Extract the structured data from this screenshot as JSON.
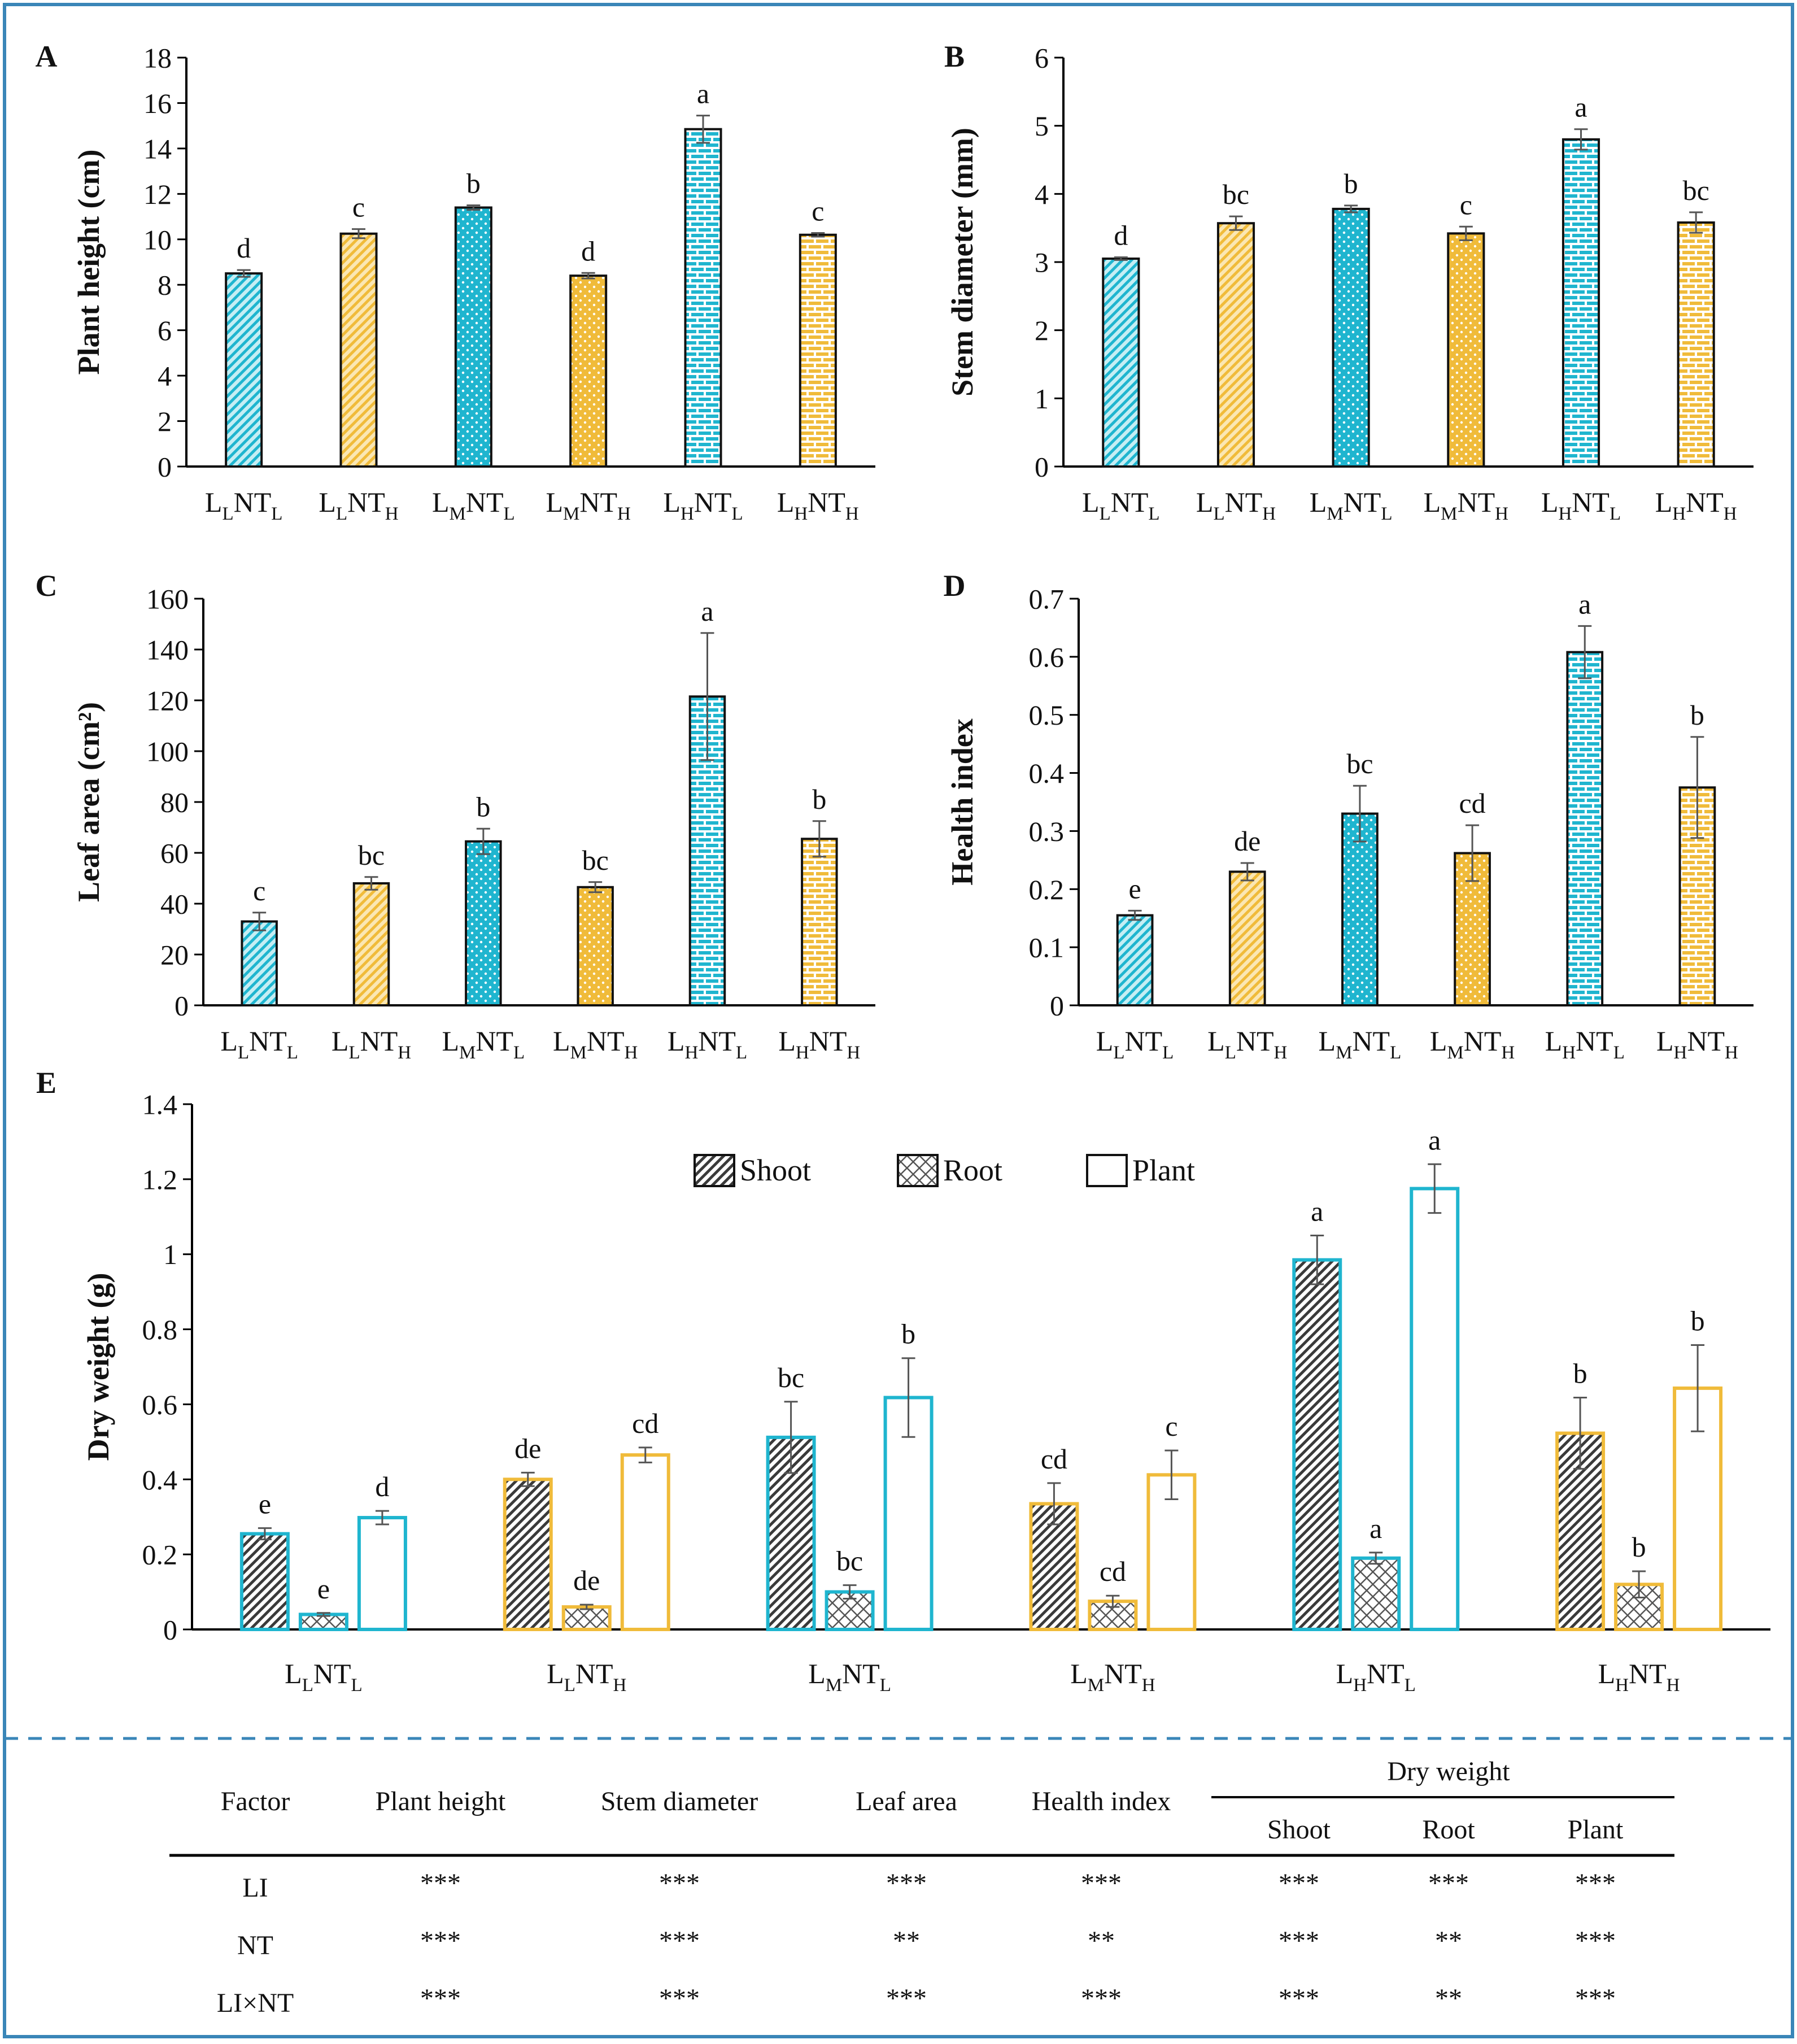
{
  "colors": {
    "teal": "#1fb5cf",
    "teal_light": "#c5eef4",
    "gold": "#f0bb3a",
    "gold_light": "#fbe7b3",
    "frame": "#3a86b8",
    "dark_fill": "#3a3a3a"
  },
  "chart_data": [
    {
      "id": "A",
      "type": "bar",
      "letter": "A",
      "ylabel": "Plant height (cm)",
      "ylim": [
        0,
        18
      ],
      "yticks": [
        "0",
        "2",
        "4",
        "6",
        "8",
        "10",
        "12",
        "14",
        "16",
        "18"
      ],
      "categories": [
        {
          "b": "L",
          "s1": "L",
          "m": "NT",
          "s2": "L"
        },
        {
          "b": "L",
          "s1": "L",
          "m": "NT",
          "s2": "H"
        },
        {
          "b": "L",
          "s1": "M",
          "m": "NT",
          "s2": "L"
        },
        {
          "b": "L",
          "s1": "M",
          "m": "NT",
          "s2": "H"
        },
        {
          "b": "L",
          "s1": "H",
          "m": "NT",
          "s2": "L"
        },
        {
          "b": "L",
          "s1": "H",
          "m": "NT",
          "s2": "H"
        }
      ],
      "values": [
        8.5,
        10.25,
        11.4,
        8.4,
        14.85,
        10.2
      ],
      "errors": [
        0.15,
        0.2,
        0.1,
        0.12,
        0.6,
        0.08
      ],
      "letters": [
        "d",
        "c",
        "b",
        "d",
        "a",
        "c"
      ],
      "patterns": [
        "diag",
        "diag",
        "dots",
        "dots",
        "brick",
        "brick"
      ],
      "colors": [
        "teal",
        "gold",
        "teal",
        "gold",
        "teal",
        "gold"
      ]
    },
    {
      "id": "B",
      "type": "bar",
      "letter": "B",
      "ylabel": "Stem diameter (mm)",
      "ylim": [
        0,
        6
      ],
      "yticks": [
        "0",
        "1",
        "2",
        "3",
        "4",
        "5",
        "6"
      ],
      "categories": [
        {
          "b": "L",
          "s1": "L",
          "m": "NT",
          "s2": "L"
        },
        {
          "b": "L",
          "s1": "L",
          "m": "NT",
          "s2": "H"
        },
        {
          "b": "L",
          "s1": "M",
          "m": "NT",
          "s2": "L"
        },
        {
          "b": "L",
          "s1": "M",
          "m": "NT",
          "s2": "H"
        },
        {
          "b": "L",
          "s1": "H",
          "m": "NT",
          "s2": "L"
        },
        {
          "b": "L",
          "s1": "H",
          "m": "NT",
          "s2": "H"
        }
      ],
      "values": [
        3.05,
        3.57,
        3.78,
        3.42,
        4.8,
        3.58
      ],
      "errors": [
        0.02,
        0.1,
        0.05,
        0.1,
        0.15,
        0.15
      ],
      "letters": [
        "d",
        "bc",
        "b",
        "c",
        "a",
        "bc"
      ],
      "patterns": [
        "diag",
        "diag",
        "dots",
        "dots",
        "brick",
        "brick"
      ],
      "colors": [
        "teal",
        "gold",
        "teal",
        "gold",
        "teal",
        "gold"
      ]
    },
    {
      "id": "C",
      "type": "bar",
      "letter": "C",
      "ylabel": "Leaf area (cm²)",
      "ylim": [
        0,
        160
      ],
      "yticks": [
        "0",
        "20",
        "40",
        "60",
        "80",
        "100",
        "120",
        "140",
        "160"
      ],
      "categories": [
        {
          "b": "L",
          "s1": "L",
          "m": "NT",
          "s2": "L"
        },
        {
          "b": "L",
          "s1": "L",
          "m": "NT",
          "s2": "H"
        },
        {
          "b": "L",
          "s1": "M",
          "m": "NT",
          "s2": "L"
        },
        {
          "b": "L",
          "s1": "M",
          "m": "NT",
          "s2": "H"
        },
        {
          "b": "L",
          "s1": "H",
          "m": "NT",
          "s2": "L"
        },
        {
          "b": "L",
          "s1": "H",
          "m": "NT",
          "s2": "H"
        }
      ],
      "values": [
        33,
        48,
        64.5,
        46.5,
        121.5,
        65.5
      ],
      "errors": [
        3.5,
        2.5,
        5,
        2,
        25,
        7
      ],
      "letters": [
        "c",
        "bc",
        "b",
        "bc",
        "a",
        "b"
      ],
      "patterns": [
        "diag",
        "diag",
        "dots",
        "dots",
        "brick",
        "brick"
      ],
      "colors": [
        "teal",
        "gold",
        "teal",
        "gold",
        "teal",
        "gold"
      ]
    },
    {
      "id": "D",
      "type": "bar",
      "letter": "D",
      "ylabel": "Health index",
      "ylim": [
        0,
        0.7
      ],
      "yticks": [
        "0",
        "0.1",
        "0.2",
        "0.3",
        "0.4",
        "0.5",
        "0.6",
        "0.7"
      ],
      "categories": [
        {
          "b": "L",
          "s1": "L",
          "m": "NT",
          "s2": "L"
        },
        {
          "b": "L",
          "s1": "L",
          "m": "NT",
          "s2": "H"
        },
        {
          "b": "L",
          "s1": "M",
          "m": "NT",
          "s2": "L"
        },
        {
          "b": "L",
          "s1": "M",
          "m": "NT",
          "s2": "H"
        },
        {
          "b": "L",
          "s1": "H",
          "m": "NT",
          "s2": "L"
        },
        {
          "b": "L",
          "s1": "H",
          "m": "NT",
          "s2": "H"
        }
      ],
      "values": [
        0.155,
        0.23,
        0.33,
        0.262,
        0.608,
        0.375
      ],
      "errors": [
        0.008,
        0.015,
        0.048,
        0.048,
        0.045,
        0.087
      ],
      "letters": [
        "e",
        "de",
        "bc",
        "cd",
        "a",
        "b"
      ],
      "patterns": [
        "diag",
        "diag",
        "dots",
        "dots",
        "brick",
        "brick"
      ],
      "colors": [
        "teal",
        "gold",
        "teal",
        "gold",
        "teal",
        "gold"
      ]
    },
    {
      "id": "E",
      "type": "grouped-bar",
      "letter": "E",
      "ylabel": "Dry weight (g)",
      "ylim": [
        0,
        1.4
      ],
      "yticks": [
        "0",
        "0.2",
        "0.4",
        "0.6",
        "0.8",
        "1",
        "1.2",
        "1.4"
      ],
      "categories": [
        {
          "b": "L",
          "s1": "L",
          "m": "NT",
          "s2": "L"
        },
        {
          "b": "L",
          "s1": "L",
          "m": "NT",
          "s2": "H"
        },
        {
          "b": "L",
          "s1": "M",
          "m": "NT",
          "s2": "L"
        },
        {
          "b": "L",
          "s1": "M",
          "m": "NT",
          "s2": "H"
        },
        {
          "b": "L",
          "s1": "H",
          "m": "NT",
          "s2": "L"
        },
        {
          "b": "L",
          "s1": "H",
          "m": "NT",
          "s2": "H"
        }
      ],
      "group_colors": [
        "teal",
        "gold",
        "teal",
        "gold",
        "teal",
        "gold"
      ],
      "series": [
        {
          "name": "Shoot",
          "pattern": "hatch",
          "values": [
            0.255,
            0.4,
            0.512,
            0.335,
            0.985,
            0.523
          ],
          "errors": [
            0.015,
            0.018,
            0.095,
            0.055,
            0.065,
            0.095
          ],
          "letters": [
            "e",
            "de",
            "bc",
            "cd",
            "a",
            "b"
          ]
        },
        {
          "name": "Root",
          "pattern": "cross",
          "values": [
            0.04,
            0.06,
            0.1,
            0.075,
            0.19,
            0.12
          ],
          "errors": [
            0.004,
            0.006,
            0.018,
            0.015,
            0.015,
            0.035
          ],
          "letters": [
            "e",
            "de",
            "bc",
            "cd",
            "a",
            "b"
          ]
        },
        {
          "name": "Plant",
          "pattern": "open",
          "values": [
            0.298,
            0.465,
            0.618,
            0.412,
            1.175,
            0.643
          ],
          "errors": [
            0.018,
            0.02,
            0.105,
            0.065,
            0.065,
            0.115
          ],
          "letters": [
            "d",
            "cd",
            "b",
            "c",
            "a",
            "b"
          ]
        }
      ]
    }
  ],
  "anova_table": {
    "headers": [
      "Factor",
      "Plant height",
      "Stem diameter",
      "Leaf area",
      "Health index"
    ],
    "dry_weight_header": "Dry weight",
    "dry_weight_sub": [
      "Shoot",
      "Root",
      "Plant"
    ],
    "rows": [
      {
        "factor": "LI",
        "cells": [
          "***",
          "***",
          "***",
          "***",
          "***",
          "***",
          "***"
        ]
      },
      {
        "factor": "NT",
        "cells": [
          "***",
          "***",
          "**",
          "**",
          "***",
          "**",
          "***"
        ]
      },
      {
        "factor": "LI×NT",
        "cells": [
          "***",
          "***",
          "***",
          "***",
          "***",
          "**",
          "***"
        ]
      }
    ]
  }
}
